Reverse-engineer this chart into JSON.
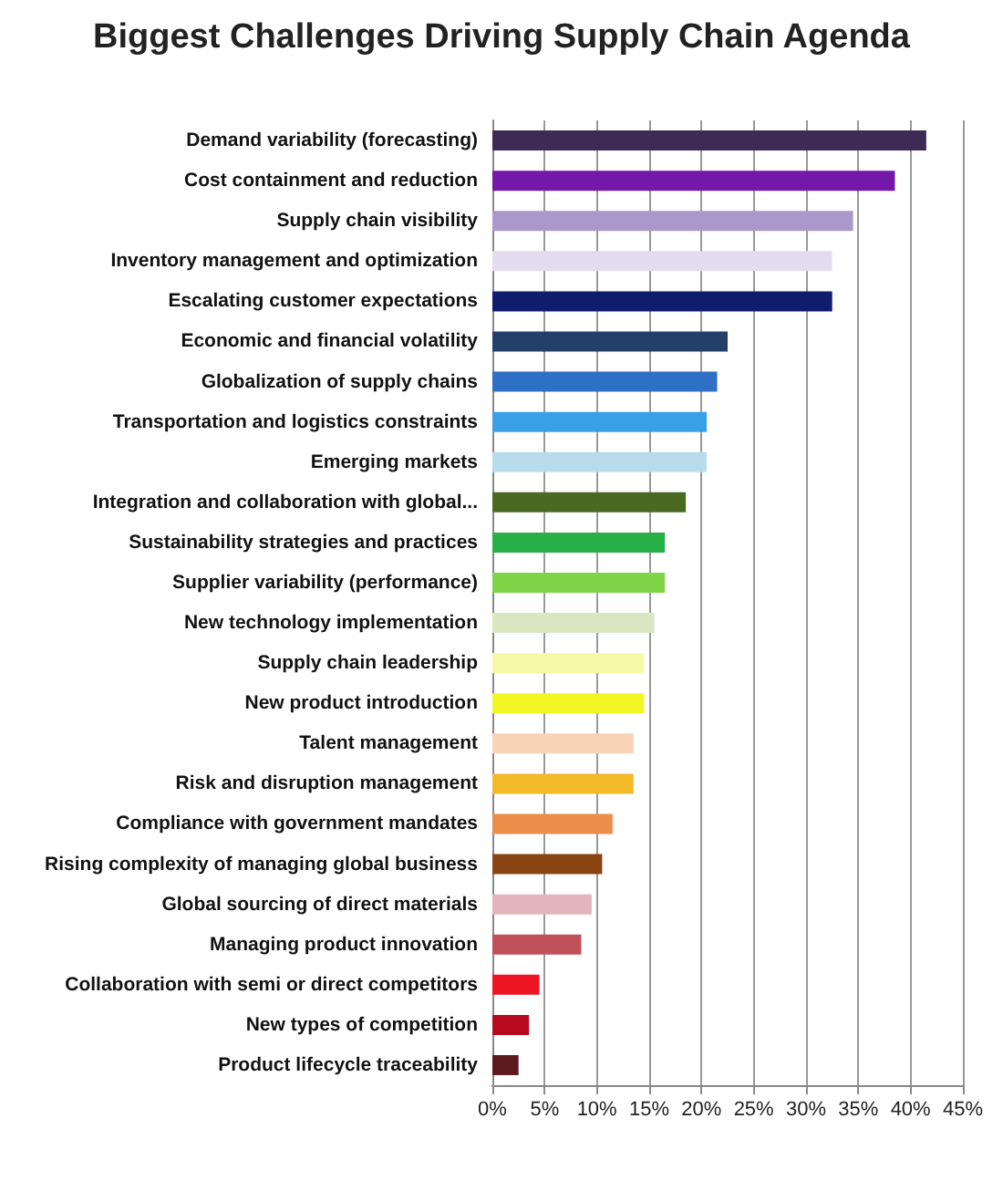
{
  "chart_data": {
    "type": "bar",
    "orientation": "horizontal",
    "title": "Biggest Challenges Driving Supply Chain Agenda",
    "categories": [
      "Demand variability (forecasting)",
      "Cost containment and reduction",
      "Supply chain visibility",
      "Inventory management and optimization",
      "Escalating customer expectations",
      "Economic and financial volatility",
      "Globalization of supply chains",
      "Transportation and logistics constraints",
      "Emerging markets",
      "Integration and collaboration with global...",
      "Sustainability strategies and practices",
      "Supplier variability (performance)",
      "New technology implementation",
      "Supply chain leadership",
      "New product introduction",
      "Talent management",
      "Risk and disruption management",
      "Compliance with government mandates",
      "Rising complexity of managing global business",
      "Global sourcing of direct materials",
      "Managing product innovation",
      "Collaboration with semi or direct competitors",
      "New types of competition",
      "Product lifecycle traceability"
    ],
    "values": [
      41.5,
      38.5,
      34.5,
      32.5,
      32.5,
      22.5,
      21.5,
      20.5,
      20.5,
      18.5,
      16.5,
      16.5,
      15.5,
      14.5,
      14.5,
      13.5,
      13.5,
      11.5,
      10.5,
      9.5,
      8.5,
      4.5,
      3.5,
      2.5
    ],
    "colors": [
      "#3d2a55",
      "#7318a8",
      "#ab97c9",
      "#e3dcee",
      "#101c6c",
      "#253f6b",
      "#2f6fc4",
      "#3aa0e6",
      "#b8dcee",
      "#4a6a24",
      "#28b048",
      "#80d448",
      "#d7e8c2",
      "#f6f9a8",
      "#f2f625",
      "#f8d3b6",
      "#f2b928",
      "#ec8e4a",
      "#8a4312",
      "#e4b4bd",
      "#c0505a",
      "#ee1524",
      "#b80a1e",
      "#5c1a1e"
    ],
    "xlim": [
      0,
      45
    ],
    "xticks": [
      {
        "value": 0,
        "label": "0%"
      },
      {
        "value": 5,
        "label": "5%"
      },
      {
        "value": 10,
        "label": "10%"
      },
      {
        "value": 15,
        "label": "15%"
      },
      {
        "value": 20,
        "label": "20%"
      },
      {
        "value": 25,
        "label": "25%"
      },
      {
        "value": 30,
        "label": "30%"
      },
      {
        "value": 35,
        "label": "35%"
      },
      {
        "value": 40,
        "label": "40%"
      },
      {
        "value": 45,
        "label": "45%"
      }
    ],
    "grid": "x"
  }
}
